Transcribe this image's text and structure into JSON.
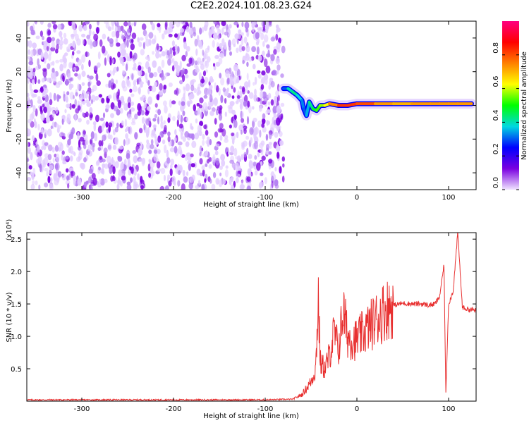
{
  "title": "C2E2.2024.101.08.23.G24",
  "chart_data": [
    {
      "type": "heatmap",
      "title": "",
      "xlabel": "Height of straight line (km)",
      "ylabel": "Frequency (Hz)",
      "xlim": [
        -360,
        130
      ],
      "ylim": [
        -50,
        50
      ],
      "xticks": [
        -300,
        -200,
        -100,
        0,
        100
      ],
      "yticks": [
        -40,
        -20,
        0,
        20,
        40
      ],
      "colorbar": {
        "label": "Normalized spectral amplitude",
        "range": [
          0.0,
          1.0
        ],
        "ticks": [
          "0.0",
          "0.2",
          "0.4",
          "0.6",
          "0.8"
        ],
        "colors": [
          "#f0e4ff",
          "#7a00e0",
          "#0000ff",
          "#00d8e0",
          "#00ff00",
          "#ffff00",
          "#ff8000",
          "#ff0000",
          "#ff0080"
        ]
      },
      "noise_region": {
        "x": [
          -360,
          -80
        ],
        "y": [
          -50,
          50
        ],
        "amplitude": [
          0.05,
          0.2
        ]
      },
      "signal_track": [
        {
          "x": -80,
          "y": 10,
          "amplitude": 0.25
        },
        {
          "x": -75,
          "y": 10,
          "amplitude": 0.35
        },
        {
          "x": -70,
          "y": 8,
          "amplitude": 0.45
        },
        {
          "x": -65,
          "y": 6,
          "amplitude": 0.4
        },
        {
          "x": -60,
          "y": 3,
          "amplitude": 0.35
        },
        {
          "x": -58,
          "y": -2,
          "amplitude": 0.3
        },
        {
          "x": -55,
          "y": -6,
          "amplitude": 0.3
        },
        {
          "x": -52,
          "y": 2,
          "amplitude": 0.4
        },
        {
          "x": -48,
          "y": -2,
          "amplitude": 0.45
        },
        {
          "x": -44,
          "y": -3,
          "amplitude": 0.5
        },
        {
          "x": -40,
          "y": 0,
          "amplitude": 0.55
        },
        {
          "x": -35,
          "y": 0,
          "amplitude": 0.6
        },
        {
          "x": -30,
          "y": 1,
          "amplitude": 0.65
        },
        {
          "x": -20,
          "y": 0,
          "amplitude": 0.85
        },
        {
          "x": -10,
          "y": 0,
          "amplitude": 0.8
        },
        {
          "x": 0,
          "y": 1,
          "amplitude": 0.85
        },
        {
          "x": 20,
          "y": 1,
          "amplitude": 0.75
        },
        {
          "x": 40,
          "y": 1,
          "amplitude": 0.7
        },
        {
          "x": 60,
          "y": 1,
          "amplitude": 0.7
        },
        {
          "x": 80,
          "y": 1,
          "amplitude": 0.75
        },
        {
          "x": 90,
          "y": 1,
          "amplitude": 0.7
        },
        {
          "x": 100,
          "y": 1,
          "amplitude": 0.75
        },
        {
          "x": 110,
          "y": 1,
          "amplitude": 0.7
        },
        {
          "x": 125,
          "y": 1,
          "amplitude": 0.75
        }
      ]
    },
    {
      "type": "line",
      "title": "",
      "xlabel": "Height of straight line (km)",
      "ylabel": "SNR (10 * v/v)",
      "yscale_label": "(x10⁴)",
      "xlim": [
        -360,
        130
      ],
      "ylim": [
        0,
        2.6
      ],
      "xticks": [
        -300,
        -200,
        -100,
        0,
        100
      ],
      "yticks": [
        0.5,
        1.0,
        1.5,
        2.0,
        2.5
      ],
      "ytick_labels": [
        "0.5",
        "1.0",
        "1.5",
        "2.0",
        "2.5"
      ],
      "series": [
        {
          "color": "#e83030",
          "x": [
            -360,
            -300,
            -200,
            -100,
            -70,
            -60,
            -50,
            -45,
            -42,
            -40,
            -35,
            -30,
            -25,
            -20,
            -15,
            -10,
            -5,
            0,
            10,
            20,
            30,
            40,
            50,
            60,
            70,
            80,
            85,
            90,
            95,
            97,
            100,
            105,
            110,
            115,
            120,
            130
          ],
          "y": [
            0.02,
            0.02,
            0.02,
            0.02,
            0.03,
            0.1,
            0.3,
            0.5,
            1.6,
            0.6,
            0.5,
            0.7,
            1.05,
            0.8,
            1.4,
            1.0,
            0.95,
            0.95,
            1.1,
            1.25,
            1.4,
            1.48,
            1.51,
            1.5,
            1.5,
            1.48,
            1.5,
            1.6,
            2.1,
            0.1,
            1.5,
            1.7,
            2.6,
            1.45,
            1.42,
            1.4
          ]
        }
      ]
    }
  ]
}
